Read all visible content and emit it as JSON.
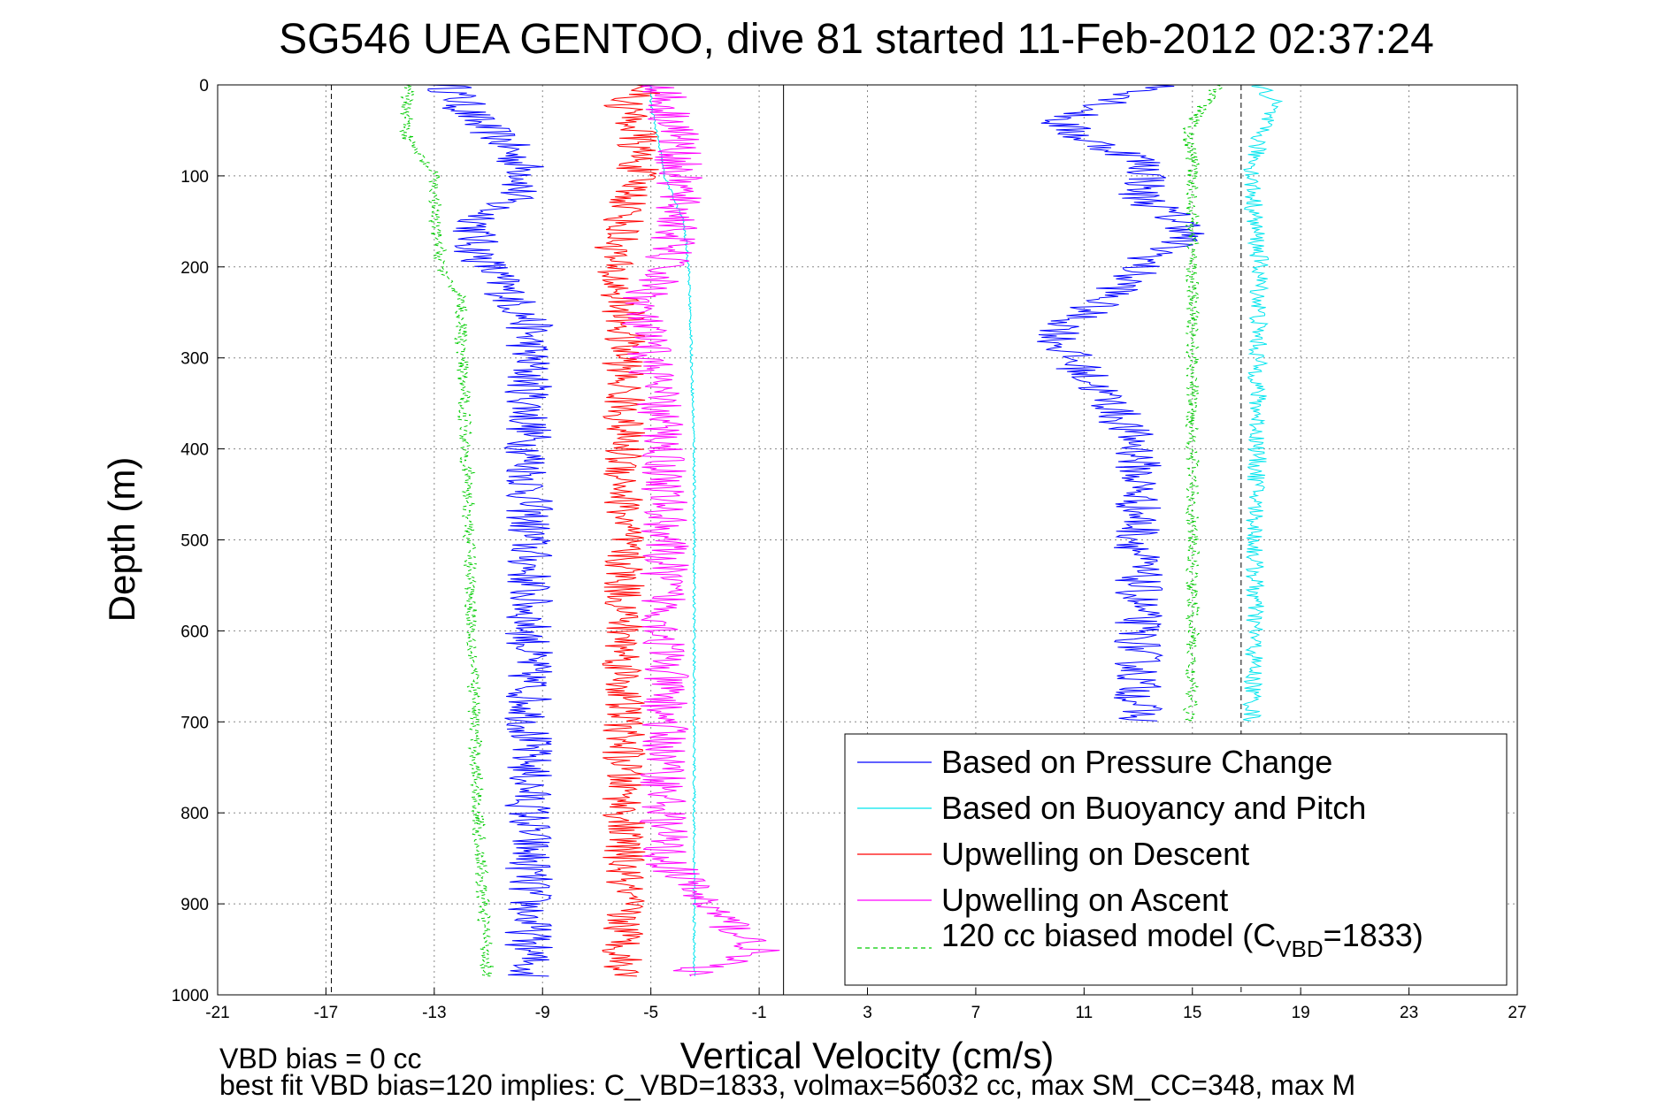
{
  "chart_data": {
    "type": "line",
    "title": "SG546 UEA GENTOO, dive 81 started 11-Feb-2012 02:37:24",
    "xlabel": "Vertical Velocity (cm/s)",
    "ylabel": "Depth (m)",
    "xlim": [
      -21,
      27
    ],
    "ylim": [
      1000,
      0
    ],
    "y_reversed": true,
    "grid": true,
    "xticks": [
      "-21",
      "-17",
      "-13",
      "-9",
      "-5",
      "-1",
      "3",
      "7",
      "11",
      "15",
      "19",
      "23",
      "27"
    ],
    "yticks": [
      "0",
      "100",
      "200",
      "300",
      "400",
      "500",
      "600",
      "700",
      "800",
      "900",
      "1000"
    ],
    "reference_lines": [
      {
        "x": -16.8,
        "style": "dashed"
      },
      {
        "x": 16.8,
        "style": "dashed"
      },
      {
        "x": -0.1,
        "style": "solid"
      }
    ],
    "legend_position": "bottom-right",
    "legend": [
      {
        "label": "Based on Pressure Change",
        "color": "#0000ff",
        "style": "solid"
      },
      {
        "label": "Based on Buoyancy and Pitch",
        "color": "#00e5ee",
        "style": "solid"
      },
      {
        "label": "Upwelling on Descent",
        "color": "#ff0000",
        "style": "solid"
      },
      {
        "label": "Upwelling on Ascent",
        "color": "#ff00ff",
        "style": "solid"
      },
      {
        "label_main": "120 cc biased model (C",
        "label_sub": "VBD",
        "label_end": "=1833)",
        "color": "#00cc00",
        "style": "dashed"
      }
    ],
    "series": [
      {
        "name": "Based on Pressure Change",
        "color": "#0000ff",
        "noise": 0.9,
        "depth": [
          0,
          20,
          40,
          60,
          80,
          100,
          120,
          140,
          160,
          180,
          200,
          220,
          240,
          260,
          280,
          300,
          350,
          400,
          450,
          500,
          600,
          700,
          800,
          900,
          980
        ],
        "velocity": [
          -12.5,
          -12,
          -11.5,
          -10.5,
          -10,
          -9.5,
          -10,
          -11,
          -11.5,
          -11.5,
          -11,
          -10.5,
          -10,
          -9.5,
          -9.5,
          -9.5,
          -9.5,
          -9.5,
          -9.5,
          -9.5,
          -9.5,
          -9.5,
          -9.5,
          -9.5,
          -9.5
        ]
      },
      {
        "name": "Based on Pressure Change",
        "color": "#0000ff",
        "noise": 0.9,
        "depth": [
          0,
          20,
          40,
          60,
          80,
          100,
          120,
          140,
          160,
          180,
          200,
          220,
          240,
          260,
          280,
          300,
          350,
          400,
          450,
          500,
          600,
          700
        ],
        "velocity": [
          14,
          12,
          10,
          11,
          13,
          13.5,
          13,
          14,
          15,
          14,
          13,
          12.5,
          11.5,
          10.5,
          10,
          10.5,
          12,
          13,
          13,
          13,
          13,
          13
        ]
      },
      {
        "name": "Based on Buoyancy and Pitch",
        "color": "#00e5ee",
        "noise": 0.05,
        "depth": [
          0,
          20,
          50,
          100,
          150,
          200,
          300,
          400,
          500,
          600,
          700,
          800,
          900,
          980
        ],
        "velocity": [
          -5,
          -5,
          -4.8,
          -4.5,
          -3.8,
          -3.6,
          -3.5,
          -3.4,
          -3.4,
          -3.4,
          -3.4,
          -3.4,
          -3.4,
          -3.4
        ]
      },
      {
        "name": "Based on Buoyancy and Pitch",
        "color": "#00e5ee",
        "noise": 0.35,
        "depth": [
          0,
          20,
          50,
          100,
          150,
          200,
          300,
          400,
          500,
          600,
          700
        ],
        "velocity": [
          17.5,
          18,
          17.5,
          17.2,
          17.3,
          17.5,
          17.4,
          17.4,
          17.3,
          17.3,
          17.2
        ]
      },
      {
        "name": "Upwelling on Descent",
        "color": "#ff0000",
        "noise": 0.8,
        "depth": [
          0,
          20,
          50,
          100,
          150,
          200,
          250,
          300,
          400,
          500,
          600,
          700,
          800,
          900,
          980
        ],
        "velocity": [
          -5,
          -6,
          -5.5,
          -5.5,
          -6,
          -6.5,
          -6,
          -6,
          -6,
          -6,
          -6,
          -6,
          -6,
          -6,
          -6
        ]
      },
      {
        "name": "Upwelling on Ascent",
        "color": "#ff00ff",
        "noise": 0.9,
        "depth": [
          0,
          20,
          50,
          100,
          150,
          200,
          250,
          300,
          400,
          500,
          600,
          700,
          800,
          850,
          900,
          950,
          980
        ],
        "velocity": [
          -4.5,
          -4.5,
          -4,
          -4,
          -4,
          -4.5,
          -5.5,
          -5,
          -4.5,
          -4.5,
          -4.5,
          -4.5,
          -4.5,
          -4.5,
          -3,
          -1,
          -4
        ]
      },
      {
        "name": "120 cc biased model",
        "color": "#00cc00",
        "noise": 0.25,
        "depth": [
          0,
          20,
          40,
          60,
          80,
          100,
          150,
          200,
          215,
          230,
          300,
          400,
          500,
          600,
          700,
          800,
          900,
          980
        ],
        "velocity": [
          -14,
          -14,
          -14,
          -14,
          -13.5,
          -13,
          -13,
          -12.7,
          -12.6,
          -12,
          -12,
          -11.8,
          -11.7,
          -11.6,
          -11.5,
          -11.4,
          -11.2,
          -11
        ]
      },
      {
        "name": "120 cc biased model",
        "color": "#00cc00",
        "noise": 0.25,
        "depth": [
          0,
          20,
          40,
          60,
          80,
          100,
          150,
          200,
          300,
          400,
          500,
          600,
          700
        ],
        "velocity": [
          16,
          15.5,
          15,
          14.8,
          15,
          15,
          15,
          15,
          15,
          15,
          15,
          15,
          14.9
        ]
      }
    ],
    "notes": [
      "VBD bias = 0 cc",
      "best fit VBD bias=120 implies: C_VBD=1833, volmax=56032 cc, max SM_CC=348, max M"
    ]
  }
}
